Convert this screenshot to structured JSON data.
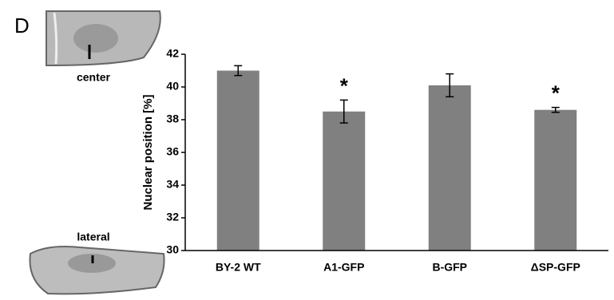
{
  "chart_data": {
    "type": "bar",
    "panel_label": "D",
    "image_labels": [
      "center",
      "lateral"
    ],
    "y_label": "Nuclear position [%]",
    "categories": [
      "BY-2 WT",
      "A1-GFP",
      "B-GFP",
      "ΔSP-GFP"
    ],
    "values": [
      41.0,
      38.5,
      40.1,
      38.6
    ],
    "errors": [
      0.3,
      0.7,
      0.7,
      0.15
    ],
    "markers": [
      null,
      "*",
      null,
      "*"
    ],
    "color": "#808080",
    "ylim": [
      30,
      42
    ],
    "yticks": [
      30,
      32,
      34,
      36,
      38,
      40,
      42
    ]
  }
}
